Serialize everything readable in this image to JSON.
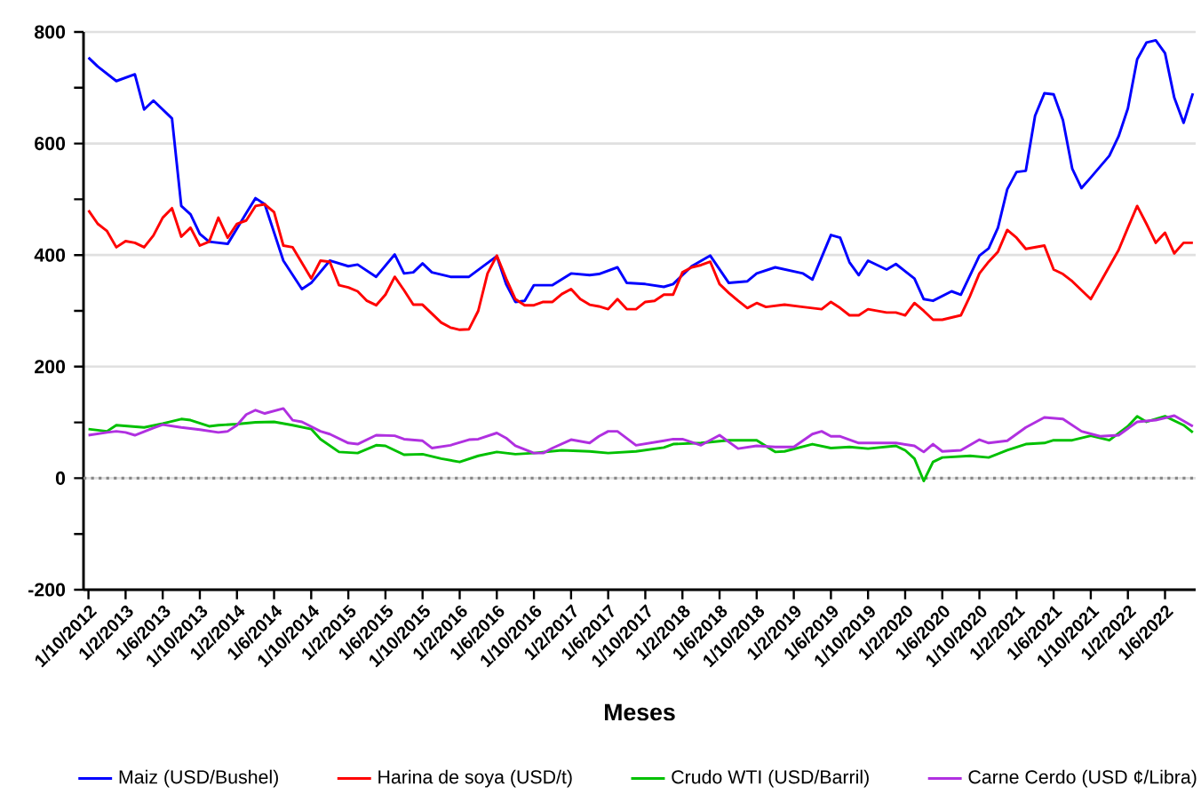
{
  "chart_data": {
    "type": "line",
    "xlabel": "Meses",
    "xlim": [
      "2012-09-15",
      "2022-09-10"
    ],
    "xticks": [
      {
        "value": "2012-10",
        "label": "1/10/2012"
      },
      {
        "value": "2013-02",
        "label": "1/2/2013"
      },
      {
        "value": "2013-06",
        "label": "1/6/2013"
      },
      {
        "value": "2013-10",
        "label": "1/10/2013"
      },
      {
        "value": "2014-02",
        "label": "1/2/2014"
      },
      {
        "value": "2014-06",
        "label": "1/6/2014"
      },
      {
        "value": "2014-10",
        "label": "1/10/2014"
      },
      {
        "value": "2015-02",
        "label": "1/2/2015"
      },
      {
        "value": "2015-06",
        "label": "1/6/2015"
      },
      {
        "value": "2015-10",
        "label": "1/10/2015"
      },
      {
        "value": "2016-02",
        "label": "1/2/2016"
      },
      {
        "value": "2016-06",
        "label": "1/6/2016"
      },
      {
        "value": "2016-10",
        "label": "1/10/2016"
      },
      {
        "value": "2017-02",
        "label": "1/2/2017"
      },
      {
        "value": "2017-06",
        "label": "1/6/2017"
      },
      {
        "value": "2017-10",
        "label": "1/10/2017"
      },
      {
        "value": "2018-02",
        "label": "1/2/2018"
      },
      {
        "value": "2018-06",
        "label": "1/6/2018"
      },
      {
        "value": "2018-10",
        "label": "1/10/2018"
      },
      {
        "value": "2019-02",
        "label": "1/2/2019"
      },
      {
        "value": "2019-06",
        "label": "1/6/2019"
      },
      {
        "value": "2019-10",
        "label": "1/10/2019"
      },
      {
        "value": "2020-02",
        "label": "1/2/2020"
      },
      {
        "value": "2020-06",
        "label": "1/6/2020"
      },
      {
        "value": "2020-10",
        "label": "1/10/2020"
      },
      {
        "value": "2021-02",
        "label": "1/2/2021"
      },
      {
        "value": "2021-06",
        "label": "1/6/2021"
      },
      {
        "value": "2021-10",
        "label": "1/10/2021"
      },
      {
        "value": "2022-02",
        "label": "1/2/2022"
      },
      {
        "value": "2022-06",
        "label": "1/6/2022"
      }
    ],
    "ylim": [
      -200,
      800
    ],
    "yticks": [
      -200,
      {
        "value": -100,
        "label": null
      },
      0,
      {
        "value": 100,
        "label": null
      },
      200,
      {
        "value": 300,
        "label": null
      },
      400,
      {
        "value": 500,
        "label": null
      },
      600,
      {
        "value": 700,
        "label": null
      },
      800
    ],
    "grid": "y",
    "legend": "bottom",
    "ref_lines": [
      {
        "axis": "y",
        "value": 0,
        "color": "#888888",
        "line_style": "dotted"
      }
    ],
    "series": [
      {
        "name": "Maiz (USD/Bushel)",
        "color": "#0000ff",
        "x": [
          "2012-10",
          "2012-11",
          "2013-01",
          "2013-03",
          "2013-04",
          "2013-05",
          "2013-06",
          "2013-07",
          "2013-08",
          "2013-09",
          "2013-10",
          "2013-11",
          "2014-01",
          "2014-03",
          "2014-04",
          "2014-05",
          "2014-07",
          "2014-09",
          "2014-10",
          "2014-12",
          "2015-02",
          "2015-03",
          "2015-05",
          "2015-07",
          "2015-08",
          "2015-09",
          "2015-10",
          "2015-11",
          "2016-01",
          "2016-03",
          "2016-06",
          "2016-07",
          "2016-08",
          "2016-09",
          "2016-10",
          "2016-12",
          "2017-02",
          "2017-04",
          "2017-05",
          "2017-07",
          "2017-08",
          "2017-10",
          "2017-12",
          "2018-01",
          "2018-03",
          "2018-05",
          "2018-07",
          "2018-09",
          "2018-10",
          "2018-12",
          "2019-03",
          "2019-04",
          "2019-06",
          "2019-07",
          "2019-08",
          "2019-09",
          "2019-10",
          "2019-12",
          "2020-01",
          "2020-03",
          "2020-04",
          "2020-05",
          "2020-07",
          "2020-08",
          "2020-10",
          "2020-11",
          "2020-12",
          "2021-01",
          "2021-02",
          "2021-03",
          "2021-04",
          "2021-05",
          "2021-06",
          "2021-07",
          "2021-08",
          "2021-09",
          "2021-10",
          "2021-12",
          "2022-01",
          "2022-02",
          "2022-03",
          "2022-04",
          "2022-05",
          "2022-06",
          "2022-07",
          "2022-08",
          "2022-09"
        ],
        "values": [
          754,
          738,
          712,
          724,
          661,
          677,
          661,
          645,
          488,
          473,
          438,
          424,
          420,
          475,
          502,
          491,
          390,
          339,
          350,
          390,
          380,
          383,
          361,
          401,
          367,
          369,
          385,
          369,
          361,
          361,
          398,
          348,
          316,
          318,
          346,
          346,
          367,
          364,
          366,
          378,
          350,
          348,
          343,
          348,
          380,
          399,
          350,
          353,
          367,
          378,
          367,
          356,
          436,
          431,
          387,
          364,
          390,
          374,
          384,
          358,
          321,
          318,
          335,
          329,
          399,
          412,
          449,
          518,
          549,
          551,
          650,
          690,
          688,
          642,
          555,
          520,
          539,
          578,
          613,
          663,
          751,
          781,
          785,
          762,
          682,
          637,
          690
        ]
      },
      {
        "name": "Harina de soya (USD/t)",
        "color": "#ff0000",
        "x": [
          "2012-10",
          "2012-11",
          "2012-12",
          "2013-01",
          "2013-02",
          "2013-03",
          "2013-04",
          "2013-05",
          "2013-06",
          "2013-07",
          "2013-08",
          "2013-09",
          "2013-10",
          "2013-11",
          "2013-12",
          "2014-01",
          "2014-02",
          "2014-03",
          "2014-04",
          "2014-05",
          "2014-06",
          "2014-07",
          "2014-08",
          "2014-10",
          "2014-11",
          "2014-12",
          "2015-01",
          "2015-02",
          "2015-03",
          "2015-04",
          "2015-05",
          "2015-06",
          "2015-07",
          "2015-08",
          "2015-09",
          "2015-10",
          "2015-11",
          "2015-12",
          "2016-01",
          "2016-02",
          "2016-03",
          "2016-04",
          "2016-05",
          "2016-06",
          "2016-07",
          "2016-08",
          "2016-09",
          "2016-10",
          "2016-11",
          "2016-12",
          "2017-01",
          "2017-02",
          "2017-03",
          "2017-04",
          "2017-05",
          "2017-06",
          "2017-07",
          "2017-08",
          "2017-09",
          "2017-10",
          "2017-11",
          "2017-12",
          "2018-01",
          "2018-02",
          "2018-03",
          "2018-04",
          "2018-05",
          "2018-06",
          "2018-07",
          "2018-08",
          "2018-09",
          "2018-10",
          "2018-11",
          "2019-01",
          "2019-03",
          "2019-05",
          "2019-06",
          "2019-07",
          "2019-08",
          "2019-09",
          "2019-10",
          "2019-12",
          "2020-01",
          "2020-02",
          "2020-03",
          "2020-04",
          "2020-05",
          "2020-06",
          "2020-08",
          "2020-09",
          "2020-10",
          "2020-11",
          "2020-12",
          "2021-01",
          "2021-02",
          "2021-03",
          "2021-05",
          "2021-06",
          "2021-07",
          "2021-08",
          "2021-10",
          "2021-11",
          "2022-01",
          "2022-02",
          "2022-03",
          "2022-04",
          "2022-05",
          "2022-06",
          "2022-07",
          "2022-08",
          "2022-09"
        ],
        "values": [
          480,
          456,
          443,
          414,
          425,
          422,
          414,
          435,
          467,
          484,
          433,
          449,
          417,
          424,
          467,
          431,
          456,
          462,
          488,
          491,
          477,
          417,
          414,
          358,
          390,
          388,
          346,
          342,
          335,
          318,
          310,
          329,
          361,
          337,
          311,
          311,
          295,
          279,
          270,
          266,
          267,
          300,
          367,
          399,
          358,
          321,
          310,
          310,
          316,
          316,
          330,
          339,
          321,
          311,
          308,
          303,
          321,
          303,
          303,
          316,
          318,
          329,
          329,
          369,
          378,
          382,
          388,
          348,
          332,
          318,
          305,
          314,
          307,
          311,
          307,
          303,
          316,
          305,
          292,
          292,
          303,
          297,
          297,
          292,
          314,
          300,
          284,
          284,
          292,
          327,
          367,
          388,
          406,
          445,
          431,
          411,
          417,
          374,
          366,
          353,
          321,
          350,
          409,
          449,
          488,
          456,
          422,
          440,
          403,
          422,
          422
        ]
      },
      {
        "name": "Crudo WTI (USD/Barril)",
        "color": "#00c000",
        "x": [
          "2012-10",
          "2012-12",
          "2013-01",
          "2013-04",
          "2013-06",
          "2013-08",
          "2013-09",
          "2013-11",
          "2013-12",
          "2014-02",
          "2014-04",
          "2014-06",
          "2014-08",
          "2014-10",
          "2014-11",
          "2015-01",
          "2015-03",
          "2015-05",
          "2015-06",
          "2015-08",
          "2015-10",
          "2015-12",
          "2016-02",
          "2016-04",
          "2016-06",
          "2016-08",
          "2016-10",
          "2017-01",
          "2017-04",
          "2017-06",
          "2017-09",
          "2017-12",
          "2018-01",
          "2018-04",
          "2018-07",
          "2018-10",
          "2018-12",
          "2019-01",
          "2019-04",
          "2019-06",
          "2019-08",
          "2019-10",
          "2020-01",
          "2020-02",
          "2020-03",
          "2020-04",
          "2020-05",
          "2020-06",
          "2020-09",
          "2020-11",
          "2021-01",
          "2021-03",
          "2021-05",
          "2021-06",
          "2021-08",
          "2021-10",
          "2021-12",
          "2022-02",
          "2022-03",
          "2022-04",
          "2022-06",
          "2022-08",
          "2022-09"
        ],
        "values": [
          88,
          84,
          95,
          91,
          98,
          106,
          104,
          93,
          95,
          97,
          100,
          101,
          95,
          88,
          70,
          47,
          45,
          59,
          58,
          42,
          43,
          35,
          29,
          40,
          47,
          43,
          45,
          50,
          48,
          45,
          48,
          55,
          61,
          63,
          68,
          68,
          47,
          48,
          61,
          54,
          56,
          53,
          58,
          50,
          35,
          -5,
          29,
          37,
          40,
          37,
          50,
          61,
          63,
          68,
          68,
          76,
          68,
          93,
          111,
          101,
          111,
          95,
          82
        ]
      },
      {
        "name": "Carne Cerdo (USD  ¢/Libra)",
        "color": "#b030e0",
        "x": [
          "2012-10",
          "2012-12",
          "2013-01",
          "2013-02",
          "2013-03",
          "2013-05",
          "2013-06",
          "2013-08",
          "2013-10",
          "2013-12",
          "2014-01",
          "2014-02",
          "2014-03",
          "2014-04",
          "2014-05",
          "2014-07",
          "2014-08",
          "2014-09",
          "2014-11",
          "2014-12",
          "2015-02",
          "2015-03",
          "2015-05",
          "2015-07",
          "2015-08",
          "2015-10",
          "2015-11",
          "2016-01",
          "2016-03",
          "2016-04",
          "2016-06",
          "2016-07",
          "2016-08",
          "2016-10",
          "2016-11",
          "2016-12",
          "2017-02",
          "2017-04",
          "2017-05",
          "2017-06",
          "2017-07",
          "2017-09",
          "2017-12",
          "2018-01",
          "2018-02",
          "2018-04",
          "2018-06",
          "2018-08",
          "2018-10",
          "2018-12",
          "2019-02",
          "2019-04",
          "2019-05",
          "2019-06",
          "2019-07",
          "2019-09",
          "2019-11",
          "2020-01",
          "2020-03",
          "2020-04",
          "2020-05",
          "2020-06",
          "2020-08",
          "2020-10",
          "2020-11",
          "2021-01",
          "2021-03",
          "2021-05",
          "2021-07",
          "2021-09",
          "2021-11",
          "2022-01",
          "2022-03",
          "2022-05",
          "2022-07",
          "2022-09"
        ],
        "values": [
          77,
          82,
          84,
          82,
          77,
          90,
          96,
          91,
          87,
          82,
          84,
          95,
          114,
          122,
          116,
          125,
          104,
          101,
          84,
          79,
          63,
          61,
          77,
          76,
          70,
          67,
          54,
          59,
          69,
          70,
          81,
          72,
          58,
          45,
          45,
          54,
          69,
          63,
          75,
          84,
          84,
          59,
          67,
          70,
          70,
          59,
          77,
          53,
          58,
          56,
          56,
          79,
          84,
          75,
          75,
          63,
          63,
          63,
          58,
          47,
          61,
          48,
          50,
          69,
          63,
          67,
          91,
          109,
          106,
          84,
          75,
          77,
          101,
          104,
          112,
          93
        ]
      }
    ]
  }
}
